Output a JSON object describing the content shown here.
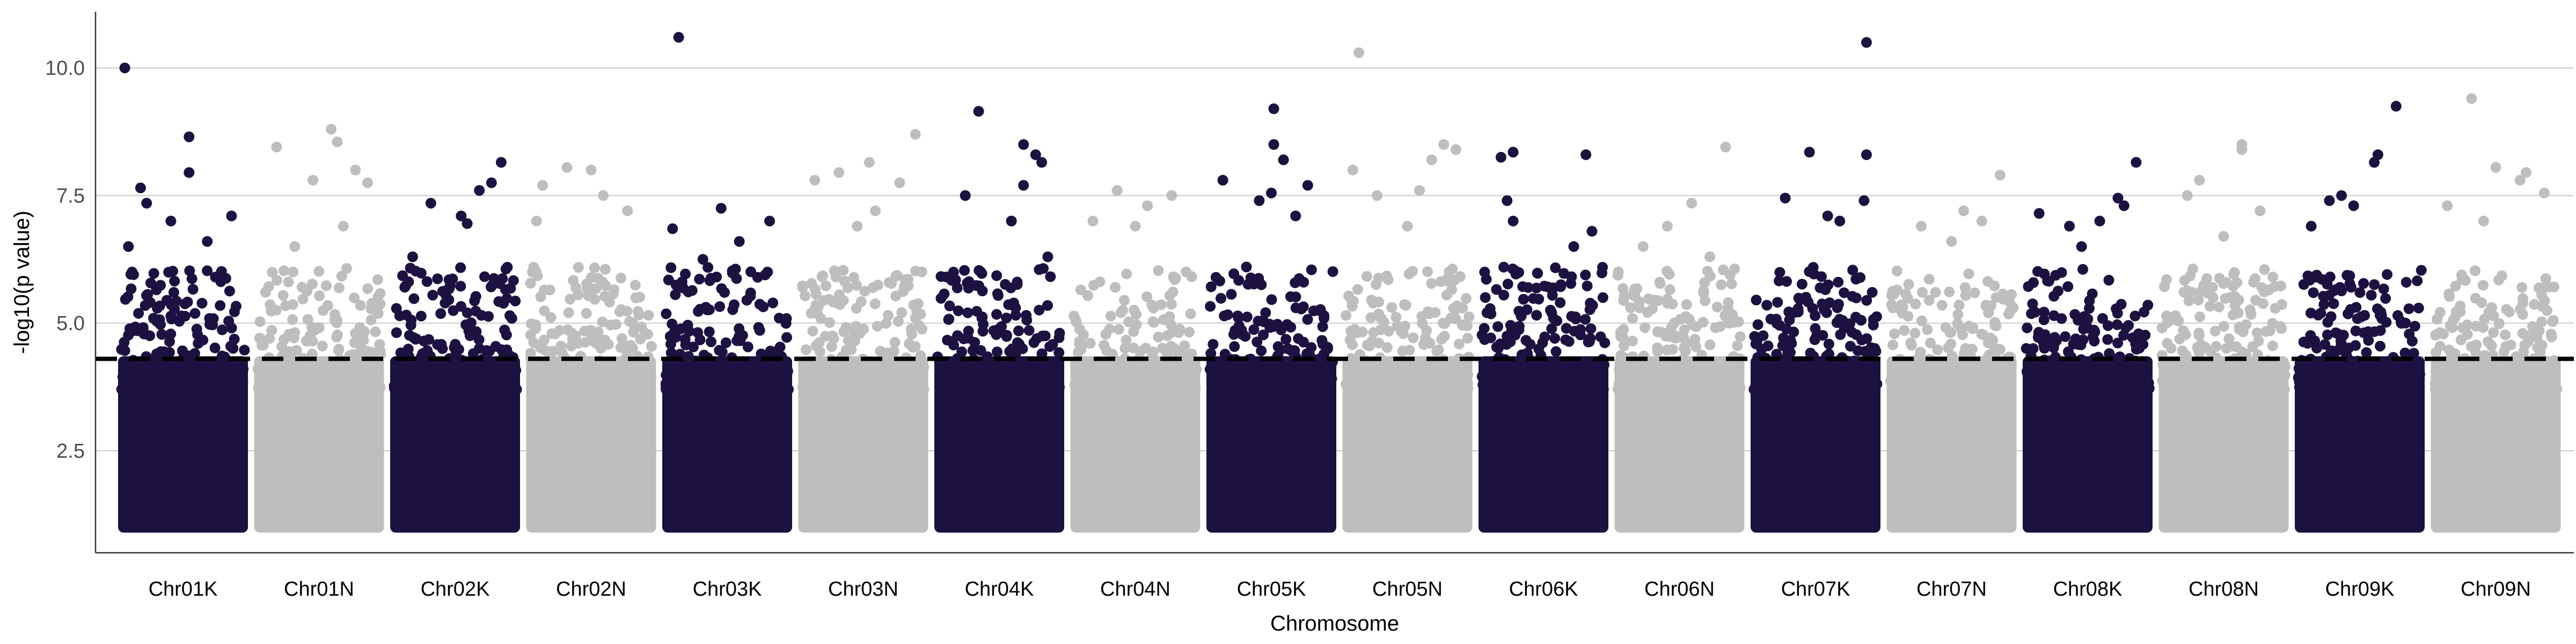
{
  "chart_data": {
    "type": "scatter",
    "subtype": "manhattan",
    "title": "",
    "xlabel": "Chromosome",
    "ylabel": "-log10(p value)",
    "ylim": [
      0.5,
      11.1
    ],
    "yticks": [
      2.5,
      5.0,
      7.5,
      10.0
    ],
    "ytick_labels": [
      "2.5",
      "5.0",
      "7.5",
      "10.0"
    ],
    "grid": {
      "horizontal_major": true,
      "vertical": false
    },
    "legend": "none",
    "threshold": {
      "y": 4.3,
      "style": "dashed",
      "color": "#000000"
    },
    "min_plotted_value": 1.0,
    "colors": {
      "odd_chromosome": "#1c1140",
      "even_chromosome": "#bebebe"
    },
    "categories": [
      "Chr01K",
      "Chr01N",
      "Chr02K",
      "Chr02N",
      "Chr03K",
      "Chr03N",
      "Chr04K",
      "Chr04N",
      "Chr05K",
      "Chr05N",
      "Chr06K",
      "Chr06N",
      "Chr07K",
      "Chr07N",
      "Chr08K",
      "Chr08N",
      "Chr09K",
      "Chr09N"
    ],
    "series": [
      {
        "chromosome": "Chr01K",
        "color": "#1c1140",
        "top_hits": [
          [
            0.02,
            10.0
          ],
          [
            0.55,
            8.65
          ],
          [
            0.55,
            7.95
          ],
          [
            0.15,
            7.65
          ],
          [
            0.2,
            7.35
          ],
          [
            0.4,
            7.0
          ],
          [
            0.9,
            7.1
          ],
          [
            0.7,
            6.6
          ],
          [
            0.05,
            6.5
          ]
        ]
      },
      {
        "chromosome": "Chr01N",
        "color": "#bebebe",
        "top_hits": [
          [
            0.15,
            8.45
          ],
          [
            0.6,
            8.8
          ],
          [
            0.65,
            8.55
          ],
          [
            0.45,
            7.8
          ],
          [
            0.8,
            8.0
          ],
          [
            0.9,
            7.75
          ],
          [
            0.7,
            6.9
          ],
          [
            0.3,
            6.5
          ]
        ]
      },
      {
        "chromosome": "Chr02K",
        "color": "#1c1140",
        "top_hits": [
          [
            0.88,
            8.15
          ],
          [
            0.8,
            7.75
          ],
          [
            0.7,
            7.6
          ],
          [
            0.3,
            7.35
          ],
          [
            0.55,
            7.1
          ],
          [
            0.6,
            6.95
          ],
          [
            0.15,
            6.3
          ]
        ]
      },
      {
        "chromosome": "Chr02N",
        "color": "#bebebe",
        "top_hits": [
          [
            0.3,
            8.05
          ],
          [
            0.5,
            8.0
          ],
          [
            0.1,
            7.7
          ],
          [
            0.6,
            7.5
          ],
          [
            0.8,
            7.2
          ],
          [
            0.05,
            7.0
          ]
        ]
      },
      {
        "chromosome": "Chr03K",
        "color": "#1c1140",
        "top_hits": [
          [
            0.1,
            10.6
          ],
          [
            0.45,
            7.25
          ],
          [
            0.05,
            6.85
          ],
          [
            0.85,
            7.0
          ],
          [
            0.6,
            6.6
          ],
          [
            0.3,
            6.25
          ]
        ]
      },
      {
        "chromosome": "Chr03N",
        "color": "#bebebe",
        "top_hits": [
          [
            0.93,
            8.7
          ],
          [
            0.55,
            8.15
          ],
          [
            0.3,
            7.95
          ],
          [
            0.1,
            7.8
          ],
          [
            0.8,
            7.75
          ],
          [
            0.6,
            7.2
          ],
          [
            0.45,
            6.9
          ]
        ]
      },
      {
        "chromosome": "Chr04K",
        "color": "#1c1140",
        "top_hits": [
          [
            0.33,
            9.15
          ],
          [
            0.7,
            8.5
          ],
          [
            0.8,
            8.3
          ],
          [
            0.85,
            8.15
          ],
          [
            0.7,
            7.7
          ],
          [
            0.22,
            7.5
          ],
          [
            0.6,
            7.0
          ],
          [
            0.9,
            6.3
          ]
        ]
      },
      {
        "chromosome": "Chr04N",
        "color": "#bebebe",
        "top_hits": [
          [
            0.35,
            7.6
          ],
          [
            0.6,
            7.3
          ],
          [
            0.8,
            7.5
          ],
          [
            0.15,
            7.0
          ],
          [
            0.5,
            6.9
          ]
        ]
      },
      {
        "chromosome": "Chr05K",
        "color": "#1c1140",
        "top_hits": [
          [
            0.52,
            9.2
          ],
          [
            0.52,
            8.5
          ],
          [
            0.6,
            8.2
          ],
          [
            0.1,
            7.8
          ],
          [
            0.5,
            7.55
          ],
          [
            0.4,
            7.4
          ],
          [
            0.8,
            7.7
          ],
          [
            0.7,
            7.1
          ]
        ]
      },
      {
        "chromosome": "Chr05N",
        "color": "#bebebe",
        "top_hits": [
          [
            0.1,
            10.3
          ],
          [
            0.05,
            8.0
          ],
          [
            0.8,
            8.5
          ],
          [
            0.9,
            8.4
          ],
          [
            0.7,
            8.2
          ],
          [
            0.25,
            7.5
          ],
          [
            0.6,
            7.6
          ],
          [
            0.5,
            6.9
          ]
        ]
      },
      {
        "chromosome": "Chr06K",
        "color": "#1c1140",
        "top_hits": [
          [
            0.25,
            8.35
          ],
          [
            0.15,
            8.25
          ],
          [
            0.85,
            8.3
          ],
          [
            0.2,
            7.4
          ],
          [
            0.25,
            7.0
          ],
          [
            0.75,
            6.5
          ],
          [
            0.9,
            6.8
          ]
        ]
      },
      {
        "chromosome": "Chr06N",
        "color": "#bebebe",
        "top_hits": [
          [
            0.88,
            8.45
          ],
          [
            0.6,
            7.35
          ],
          [
            0.4,
            6.9
          ],
          [
            0.2,
            6.5
          ],
          [
            0.75,
            6.3
          ]
        ]
      },
      {
        "chromosome": "Chr07K",
        "color": "#1c1140",
        "top_hits": [
          [
            0.92,
            10.5
          ],
          [
            0.92,
            8.3
          ],
          [
            0.45,
            8.35
          ],
          [
            0.9,
            7.4
          ],
          [
            0.6,
            7.1
          ],
          [
            0.25,
            7.45
          ],
          [
            0.7,
            7.0
          ]
        ]
      },
      {
        "chromosome": "Chr07N",
        "color": "#bebebe",
        "top_hits": [
          [
            0.9,
            7.9
          ],
          [
            0.6,
            7.2
          ],
          [
            0.25,
            6.9
          ],
          [
            0.5,
            6.6
          ],
          [
            0.75,
            7.0
          ]
        ]
      },
      {
        "chromosome": "Chr08K",
        "color": "#1c1140",
        "top_hits": [
          [
            0.9,
            8.15
          ],
          [
            0.75,
            7.45
          ],
          [
            0.8,
            7.3
          ],
          [
            0.1,
            7.15
          ],
          [
            0.35,
            6.9
          ],
          [
            0.6,
            7.0
          ],
          [
            0.45,
            6.5
          ]
        ]
      },
      {
        "chromosome": "Chr08N",
        "color": "#bebebe",
        "top_hits": [
          [
            0.65,
            8.5
          ],
          [
            0.65,
            8.4
          ],
          [
            0.3,
            7.8
          ],
          [
            0.2,
            7.5
          ],
          [
            0.8,
            7.2
          ],
          [
            0.5,
            6.7
          ]
        ]
      },
      {
        "chromosome": "Chr09K",
        "color": "#1c1140",
        "top_hits": [
          [
            0.8,
            9.25
          ],
          [
            0.65,
            8.3
          ],
          [
            0.62,
            8.15
          ],
          [
            0.35,
            7.5
          ],
          [
            0.25,
            7.4
          ],
          [
            0.45,
            7.3
          ],
          [
            0.1,
            6.9
          ]
        ]
      },
      {
        "chromosome": "Chr09N",
        "color": "#bebebe",
        "top_hits": [
          [
            0.3,
            9.4
          ],
          [
            0.5,
            8.05
          ],
          [
            0.75,
            7.95
          ],
          [
            0.7,
            7.8
          ],
          [
            0.1,
            7.3
          ],
          [
            0.9,
            7.55
          ],
          [
            0.4,
            7.0
          ]
        ]
      }
    ]
  }
}
